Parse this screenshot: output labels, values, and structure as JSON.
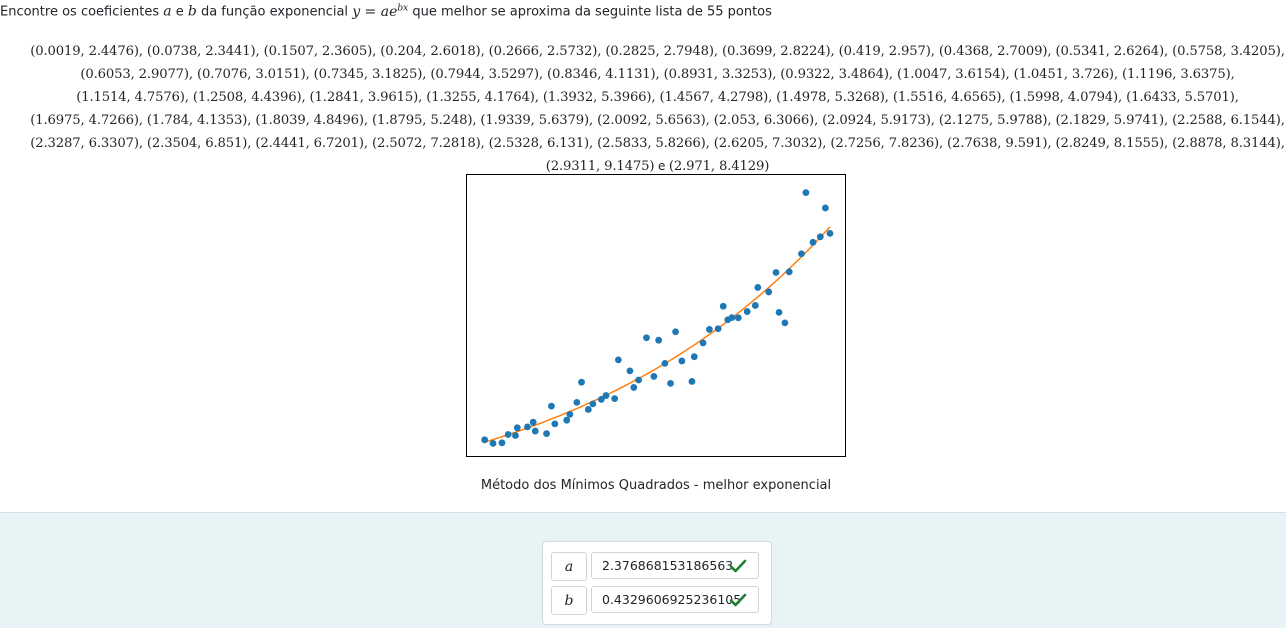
{
  "question": {
    "prefix": "Encontre os coeficientes ",
    "var_a": "a",
    "and1": " e ",
    "var_b": "b",
    "mid": " da função exponencial ",
    "formula_lhs": "y = ae",
    "formula_exp": "bx",
    "suffix": " que melhor se aproxima da seguinte lista de 55 pontos"
  },
  "point_list": {
    "separator": ", ",
    "last_separator": " e ",
    "points": [
      "(0.0019, 2.4476)",
      "(0.0738, 2.3441)",
      "(0.1507, 2.3605)",
      "(0.204, 2.6018)",
      "(0.2666, 2.5732)",
      "(0.2825, 2.7948)",
      "(0.3699, 2.8224)",
      "(0.419, 2.957)",
      "(0.4368, 2.7009)",
      "(0.5341, 2.6264)",
      "(0.5758, 3.4205)",
      "(0.6053, 2.9077)",
      "(0.7076, 3.0151)",
      "(0.7345, 3.1825)",
      "(0.7944, 3.5297)",
      "(0.8346, 4.1131)",
      "(0.8931, 3.3253)",
      "(0.9322, 3.4864)",
      "(1.0047, 3.6154)",
      "(1.0451, 3.726)",
      "(1.1196, 3.6375)",
      "(1.1514, 4.7576)",
      "(1.2508, 4.4396)",
      "(1.2841, 3.9615)",
      "(1.3255, 4.1764)",
      "(1.3932, 5.3966)",
      "(1.4567, 4.2798)",
      "(1.4978, 5.3268)",
      "(1.5516, 4.6565)",
      "(1.5998, 4.0794)",
      "(1.6433, 5.5701)",
      "(1.6975, 4.7266)",
      "(1.784, 4.1353)",
      "(1.8039, 4.8496)",
      "(1.8795, 5.248)",
      "(1.9339, 5.6379)",
      "(2.0092, 5.6563)",
      "(2.053, 6.3066)",
      "(2.0924, 5.9173)",
      "(2.1275, 5.9788)",
      "(2.1829, 5.9741)",
      "(2.2588, 6.1544)",
      "(2.3287, 6.3307)",
      "(2.3504, 6.851)",
      "(2.4441, 6.7201)",
      "(2.5072, 7.2818)",
      "(2.5328, 6.131)",
      "(2.5833, 5.8266)",
      "(2.6205, 7.3032)",
      "(2.7256, 7.8236)",
      "(2.7638, 9.591)",
      "(2.8249, 8.1555)",
      "(2.8878, 8.3144)",
      "(2.9311, 9.1475)",
      "(2.971, 8.4129)"
    ]
  },
  "chart_data": {
    "type": "scatter",
    "title": "Método dos Mínimos Quadrados - melhor exponencial",
    "xlim": [
      -0.15,
      3.1
    ],
    "ylim": [
      1.98,
      10.1
    ],
    "axes_ticks": false,
    "grid": false,
    "series": [
      {
        "kind": "scatter",
        "color": "#1f77b4",
        "x": [
          0.0019,
          0.0738,
          0.1507,
          0.204,
          0.2666,
          0.2825,
          0.3699,
          0.419,
          0.4368,
          0.5341,
          0.5758,
          0.6053,
          0.7076,
          0.7345,
          0.7944,
          0.8346,
          0.8931,
          0.9322,
          1.0047,
          1.0451,
          1.1196,
          1.1514,
          1.2508,
          1.2841,
          1.3255,
          1.3932,
          1.4567,
          1.4978,
          1.5516,
          1.5998,
          1.6433,
          1.6975,
          1.784,
          1.8039,
          1.8795,
          1.9339,
          2.0092,
          2.053,
          2.0924,
          2.1275,
          2.1829,
          2.2588,
          2.3287,
          2.3504,
          2.4441,
          2.5072,
          2.5328,
          2.5833,
          2.6205,
          2.7256,
          2.7638,
          2.8249,
          2.8878,
          2.9311,
          2.971
        ],
        "y": [
          2.4476,
          2.3441,
          2.3605,
          2.6018,
          2.5732,
          2.7948,
          2.8224,
          2.957,
          2.7009,
          2.6264,
          3.4205,
          2.9077,
          3.0151,
          3.1825,
          3.5297,
          4.1131,
          3.3253,
          3.4864,
          3.6154,
          3.726,
          3.6375,
          4.7576,
          4.4396,
          3.9615,
          4.1764,
          5.3966,
          4.2798,
          5.3268,
          4.6565,
          4.0794,
          5.5701,
          4.7266,
          4.1353,
          4.8496,
          5.248,
          5.6379,
          5.6563,
          6.3066,
          5.9173,
          5.9788,
          5.9741,
          6.1544,
          6.3307,
          6.851,
          6.7201,
          7.2818,
          6.131,
          5.8266,
          7.3032,
          7.8236,
          9.591,
          8.1555,
          8.3144,
          9.1475,
          8.4129
        ]
      },
      {
        "kind": "line",
        "color": "#ff7f0e",
        "function": "exponential",
        "a": 2.376868153186563,
        "b": 0.4329606925236105,
        "x_range": [
          0.0019,
          2.971
        ]
      }
    ]
  },
  "answers": {
    "a_label": "a",
    "a_value": "2.376868153186563",
    "b_label": "b",
    "b_value": "0.4329606925236105",
    "correct_icon": "check-icon",
    "correct_color": "#1e7e34"
  }
}
